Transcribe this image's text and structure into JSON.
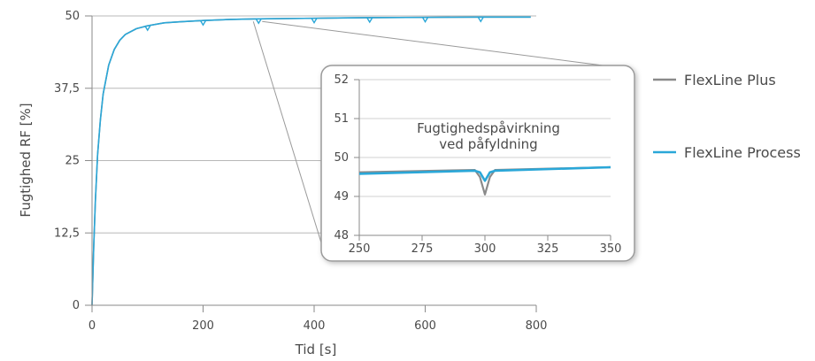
{
  "chart_data": [
    {
      "type": "line",
      "xlabel": "Tid [s]",
      "ylabel": "Fugtighed RF [%]",
      "xlim": [
        0,
        800
      ],
      "ylim": [
        0,
        50
      ],
      "xticks": [
        "0",
        "200",
        "400",
        "600",
        "800"
      ],
      "yticks": [
        "0",
        "12,5",
        "25",
        "37,5",
        "50"
      ],
      "grid": "horizontal",
      "series": [
        {
          "name": "FlexLine Plus",
          "color": "#8a8a8a",
          "x": [
            0,
            3,
            6,
            10,
            15,
            20,
            30,
            40,
            50,
            60,
            80,
            100,
            130,
            160,
            200,
            250,
            300,
            400,
            500,
            600,
            700,
            790
          ],
          "y": [
            0,
            10,
            18,
            26,
            32,
            36.5,
            41.5,
            44.2,
            45.8,
            46.8,
            47.8,
            48.3,
            48.8,
            49.0,
            49.2,
            49.4,
            49.5,
            49.6,
            49.7,
            49.75,
            49.8,
            49.8
          ],
          "dips_at": [
            100,
            200,
            300,
            400,
            500,
            600,
            700
          ]
        },
        {
          "name": "FlexLine Process",
          "color": "#2aa7d8",
          "x": [
            0,
            3,
            6,
            10,
            15,
            20,
            30,
            40,
            50,
            60,
            80,
            100,
            130,
            160,
            200,
            250,
            300,
            400,
            500,
            600,
            700,
            790
          ],
          "y": [
            0,
            10,
            18,
            26,
            32,
            36.5,
            41.5,
            44.2,
            45.8,
            46.8,
            47.8,
            48.3,
            48.8,
            49.0,
            49.2,
            49.4,
            49.5,
            49.6,
            49.7,
            49.75,
            49.8,
            49.8
          ],
          "dips_at": [
            100,
            200,
            300,
            400,
            500,
            600,
            700
          ]
        }
      ],
      "legend": {
        "placement": "right",
        "items": [
          "FlexLine Plus",
          "FlexLine Process"
        ]
      }
    },
    {
      "type": "line",
      "inset": true,
      "zoom_of": "x 250–350",
      "xlim": [
        250,
        350
      ],
      "ylim": [
        48,
        52
      ],
      "xticks": [
        "250",
        "275",
        "300",
        "325",
        "350"
      ],
      "yticks": [
        "48",
        "49",
        "50",
        "51",
        "52"
      ],
      "annotation": [
        "Fugtighedspåvirkning",
        "ved påfyldning"
      ],
      "series": [
        {
          "name": "FlexLine Plus",
          "color": "#8a8a8a",
          "x": [
            250,
            296,
            298,
            300,
            302,
            304,
            350
          ],
          "y": [
            49.62,
            49.68,
            49.5,
            49.05,
            49.5,
            49.68,
            49.75
          ]
        },
        {
          "name": "FlexLine Process",
          "color": "#2aa7d8",
          "x": [
            250,
            296,
            298,
            300,
            302,
            304,
            350
          ],
          "y": [
            49.58,
            49.66,
            49.62,
            49.4,
            49.62,
            49.66,
            49.75
          ]
        }
      ]
    }
  ]
}
